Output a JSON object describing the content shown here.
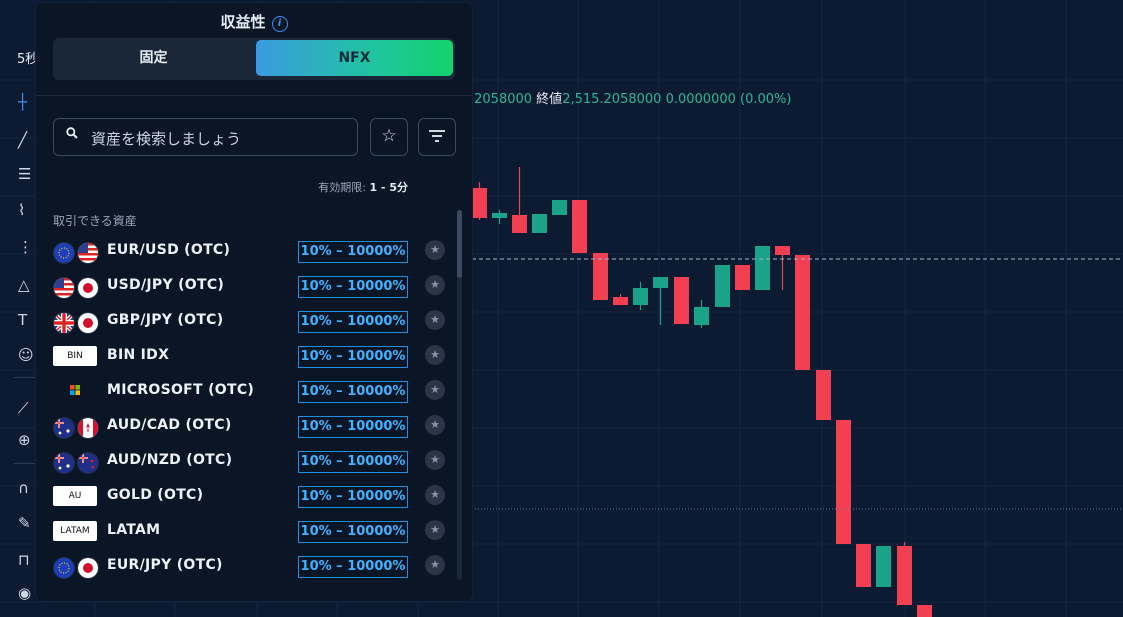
{
  "chart": {
    "timeframe": "5秒",
    "ohlc_left": ".2058000",
    "close_label": "終値",
    "close_value": "2,515.2058000",
    "change": "0.0000000 (0.00%)"
  },
  "colors": {
    "up": "#1ba38a",
    "down": "#f23f52",
    "payout": "#3fb3ff",
    "bg": "#0c1b31"
  },
  "panel": {
    "title": "収益性",
    "info_icon": "info-icon",
    "tabs": [
      {
        "label": "固定",
        "active": false
      },
      {
        "label": "NFX",
        "active": true
      }
    ],
    "search": {
      "placeholder": "資産を検索しましょう",
      "icon": "search-icon"
    },
    "favorites_icon": "star-icon",
    "filter_icon": "filter-icon",
    "expiry_label": "有効期限:",
    "expiry_value": "1 - 5分",
    "section_label": "取引できる資産",
    "assets": [
      {
        "name": "EUR/USD (OTC)",
        "payout": "10% – 10000%",
        "icons": [
          "eu-flag",
          "us-flag"
        ]
      },
      {
        "name": "USD/JPY (OTC)",
        "payout": "10% – 10000%",
        "icons": [
          "us-flag",
          "jp-flag"
        ]
      },
      {
        "name": "GBP/JPY (OTC)",
        "payout": "10% – 10000%",
        "icons": [
          "gb-flag",
          "jp-flag"
        ]
      },
      {
        "name": "BIN IDX",
        "payout": "10% – 10000%",
        "tag": "BIN"
      },
      {
        "name": "MICROSOFT (OTC)",
        "payout": "10% – 10000%",
        "icons": [
          "microsoft-logo"
        ]
      },
      {
        "name": "AUD/CAD (OTC)",
        "payout": "10% – 10000%",
        "icons": [
          "au-flag",
          "ca-flag"
        ]
      },
      {
        "name": "AUD/NZD (OTC)",
        "payout": "10% – 10000%",
        "icons": [
          "au-flag",
          "nz-flag"
        ]
      },
      {
        "name": "GOLD (OTC)",
        "payout": "10% – 10000%",
        "tag": "AU"
      },
      {
        "name": "LATAM",
        "payout": "10% – 10000%",
        "tag": "LATAM"
      },
      {
        "name": "EUR/JPY (OTC)",
        "payout": "10% – 10000%",
        "icons": [
          "eu-flag",
          "jp-flag"
        ]
      }
    ]
  }
}
